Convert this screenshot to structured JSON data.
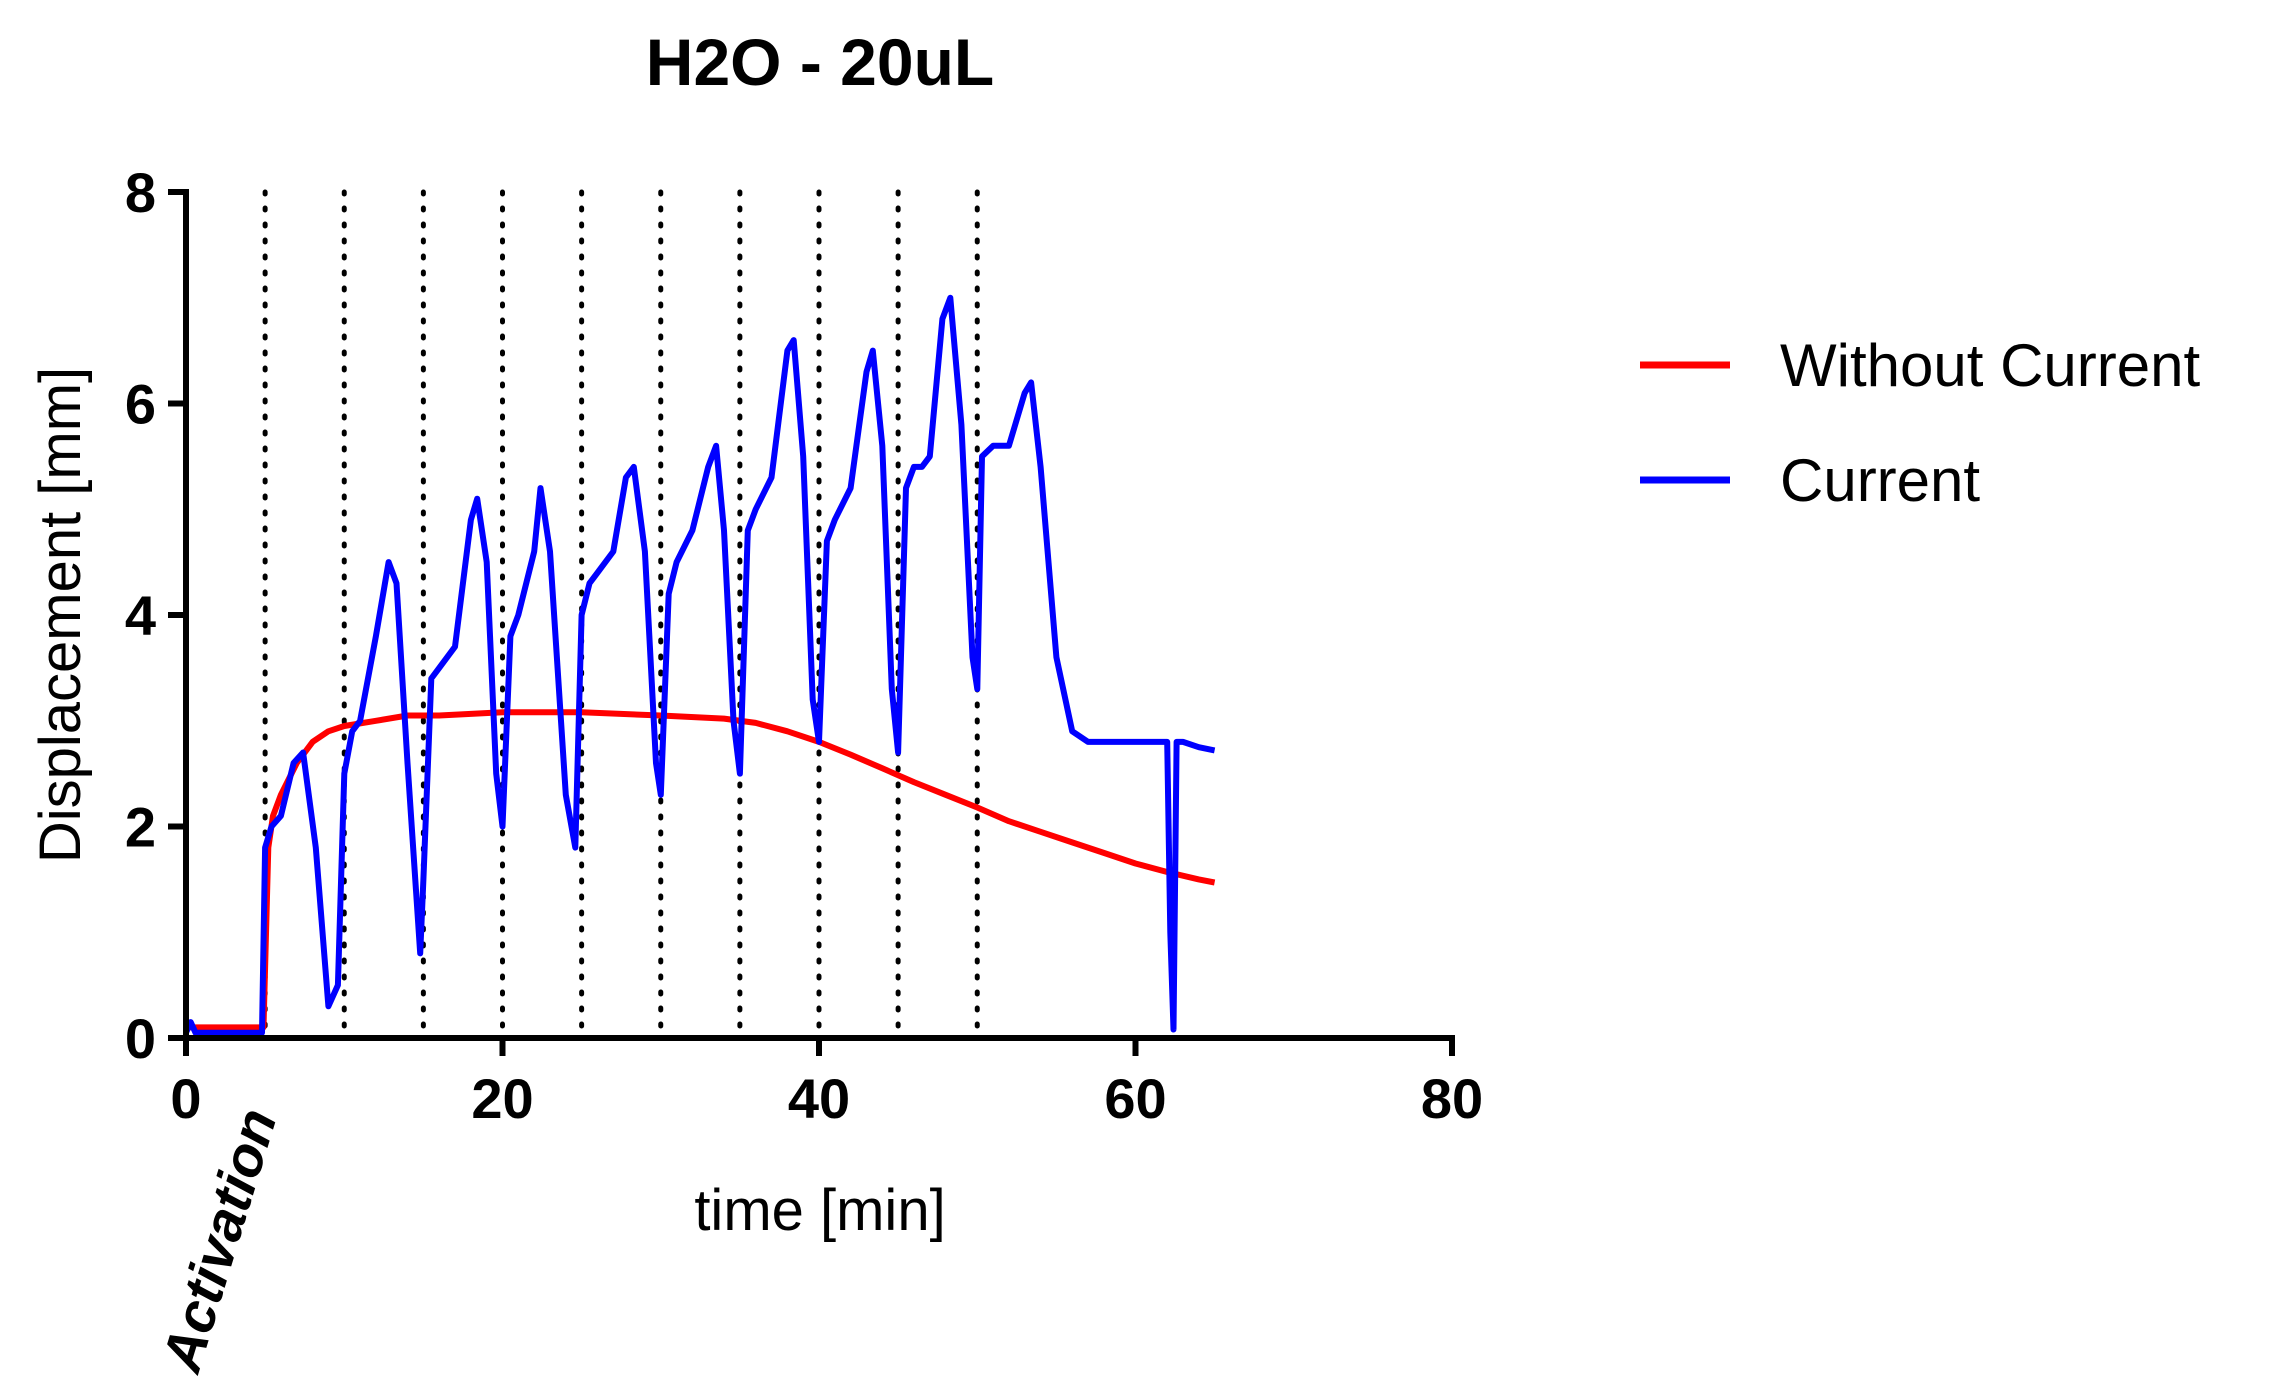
{
  "chart_data": {
    "type": "line",
    "title": "H2O - 20uL",
    "xlabel": "time [min]",
    "ylabel": "Displacement [mm]",
    "xlim": [
      0,
      80
    ],
    "ylim": [
      0,
      8
    ],
    "xticks": [
      0,
      20,
      40,
      60,
      80
    ],
    "yticks": [
      0,
      2,
      4,
      6,
      8
    ],
    "vertical_dotted_lines_x": [
      5,
      10,
      15,
      20,
      25,
      30,
      35,
      40,
      45,
      50
    ],
    "annotation": "Activation",
    "legend_position": "right",
    "series": [
      {
        "name": "Without Current",
        "color": "#ff0000",
        "x": [
          0,
          4.9,
          5.2,
          5.5,
          6,
          7,
          8,
          9,
          10,
          12,
          14,
          16,
          20,
          25,
          30,
          34,
          36,
          38,
          40,
          42,
          44,
          46,
          48,
          50,
          52,
          54,
          56,
          58,
          60,
          62,
          64,
          65
        ],
        "y": [
          0.1,
          0.1,
          1.8,
          2.1,
          2.3,
          2.6,
          2.8,
          2.9,
          2.95,
          3.0,
          3.05,
          3.05,
          3.08,
          3.08,
          3.05,
          3.02,
          2.98,
          2.9,
          2.8,
          2.68,
          2.55,
          2.42,
          2.3,
          2.18,
          2.05,
          1.95,
          1.85,
          1.75,
          1.65,
          1.57,
          1.5,
          1.47
        ]
      },
      {
        "name": "Current",
        "color": "#0000ff",
        "x": [
          0,
          0.3,
          0.6,
          4.8,
          5.0,
          5.4,
          6.0,
          6.8,
          7.4,
          8.2,
          9.0,
          9.6,
          10.0,
          10.5,
          11.0,
          12.0,
          12.8,
          13.3,
          14.0,
          14.8,
          15.0,
          15.5,
          16.0,
          17.0,
          18.0,
          18.4,
          19.0,
          19.6,
          20.0,
          20.5,
          21.0,
          22.0,
          22.4,
          23.0,
          24.0,
          24.6,
          25.0,
          25.5,
          26.0,
          27.0,
          27.8,
          28.3,
          29.0,
          29.7,
          30.0,
          30.5,
          31.0,
          32.0,
          33.0,
          33.5,
          34.0,
          34.6,
          35.0,
          35.5,
          36.0,
          37.0,
          38.0,
          38.4,
          39.0,
          39.6,
          40.0,
          40.5,
          41.0,
          42.0,
          43.0,
          43.4,
          44.0,
          44.6,
          45.0,
          45.5,
          46.0,
          46.5,
          47.0,
          47.8,
          48.3,
          49.0,
          49.7,
          50.0,
          50.3,
          51.0,
          52.0,
          53.0,
          53.4,
          54.0,
          55.0,
          56.0,
          57.0,
          58.0,
          60.0,
          62.0,
          62.2,
          62.4,
          62.6,
          63.0,
          64.0,
          65.0
        ],
        "y": [
          0.05,
          0.15,
          0.05,
          0.05,
          1.8,
          2.0,
          2.1,
          2.6,
          2.7,
          1.8,
          0.3,
          0.5,
          2.5,
          2.9,
          3.0,
          3.8,
          4.5,
          4.3,
          2.6,
          0.8,
          1.5,
          3.4,
          3.5,
          3.7,
          4.9,
          5.1,
          4.5,
          2.5,
          2.0,
          3.8,
          4.0,
          4.6,
          5.2,
          4.6,
          2.3,
          1.8,
          4.0,
          4.3,
          4.4,
          4.6,
          5.3,
          5.4,
          4.6,
          2.6,
          2.3,
          4.2,
          4.5,
          4.8,
          5.4,
          5.6,
          4.8,
          3.0,
          2.5,
          4.8,
          5.0,
          5.3,
          6.5,
          6.6,
          5.5,
          3.2,
          2.8,
          4.7,
          4.9,
          5.2,
          6.3,
          6.5,
          5.6,
          3.3,
          2.7,
          5.2,
          5.4,
          5.4,
          5.5,
          6.8,
          7.0,
          5.8,
          3.6,
          3.3,
          5.5,
          5.6,
          5.6,
          6.1,
          6.2,
          5.4,
          3.6,
          2.9,
          2.8,
          2.8,
          2.8,
          2.8,
          1.0,
          0.08,
          2.8,
          2.8,
          2.75,
          2.72
        ]
      }
    ]
  }
}
